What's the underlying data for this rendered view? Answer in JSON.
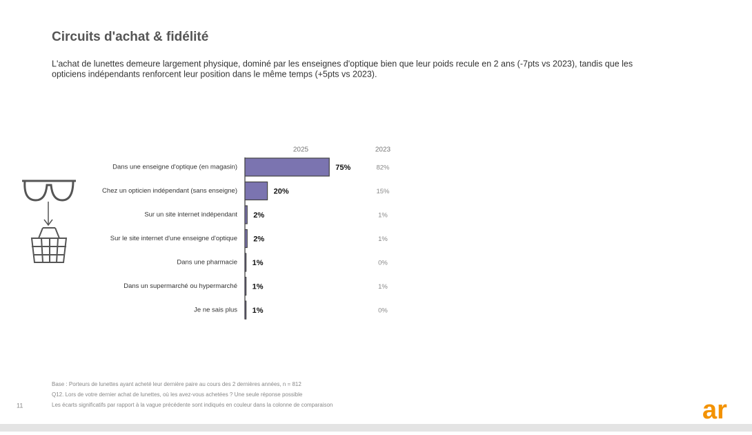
{
  "slide": {
    "title": "Circuits d'achat & fidélité",
    "subtitle_lines": [
      "L'achat de lunettes demeure largement physique, dominé par les enseignes d'optique bien que leur poids recule en 2 ans (-7pts vs 2023), tandis que les",
      "opticiens indépendants renforcent leur position dans le même temps (+5pts vs 2023)."
    ],
    "footnotes": [
      "Base : Porteurs de lunettes ayant acheté leur dernière paire au cours des 2 dernières années, n = 812",
      "Q12. Lors de votre dernier achat de lunettes, où les avez-vous achetées ? Une seule réponse possible",
      "Les écarts significatifs par rapport à la vague précédente sont indiqués en couleur dans la colonne de comparaison"
    ],
    "page_number": "11",
    "logo": "ar"
  },
  "chart_data": {
    "type": "hbar",
    "categories": [
      "Dans une enseigne d'optique (en magasin)",
      "Chez un opticien indépendant (sans enseigne)",
      "Sur un site internet indépendant",
      "Sur le site internet d'une enseigne d'optique",
      "Dans une pharmacie",
      "Dans un supermarché ou hypermarché",
      "Je ne sais plus"
    ],
    "series": [
      {
        "name": "2025",
        "color": "#7b74b0",
        "values": [
          75,
          20,
          2,
          2,
          1,
          1,
          1
        ],
        "value_labels": [
          "75%",
          "20%",
          "2%",
          "2%",
          "1%",
          "1%",
          "1%"
        ]
      }
    ],
    "comparison": {
      "name": "2023",
      "values": [
        82,
        15,
        1,
        1,
        0,
        1,
        0
      ],
      "value_labels": [
        "82%",
        "15%",
        "1%",
        "1%",
        "0%",
        "1%",
        "0%"
      ]
    },
    "xlim": [
      0,
      100
    ]
  }
}
